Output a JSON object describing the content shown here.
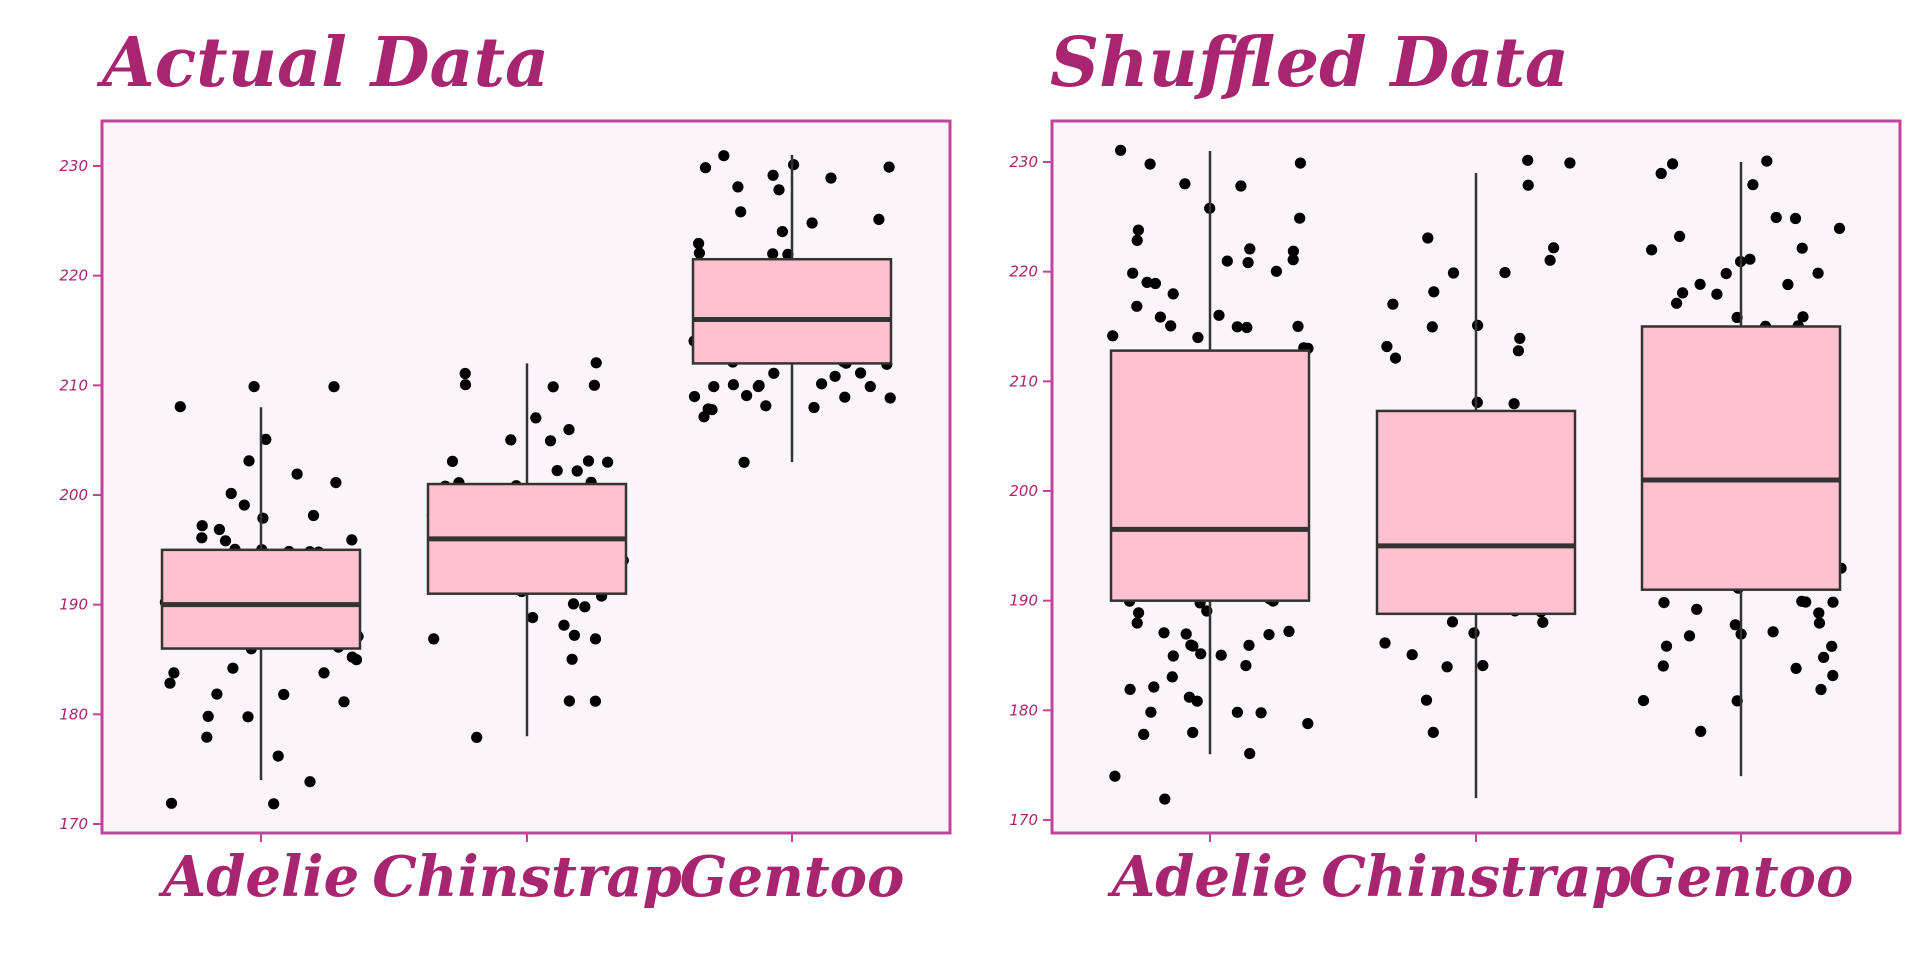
{
  "colors": {
    "accent": "#c2449a",
    "title": "#a8256f",
    "panel_bg": "#fbf4f9",
    "box_fill": "#ffc0cf",
    "box_stroke": "#333333",
    "point": "#000000"
  },
  "chart_data": [
    {
      "type": "box",
      "title": "Actual Data",
      "categories": [
        "Adelie",
        "Chinstrap",
        "Gentoo"
      ],
      "ylim": [
        169.5,
        231.5
      ],
      "yticks": [
        170,
        180,
        190,
        200,
        210,
        220,
        230
      ],
      "boxes": [
        {
          "q1": 186,
          "median": 190,
          "q3": 195,
          "whisker_low": 174,
          "whisker_high": 208
        },
        {
          "q1": 191,
          "median": 196,
          "q3": 201,
          "whisker_low": 178,
          "whisker_high": 212
        },
        {
          "q1": 212,
          "median": 216,
          "q3": 221.5,
          "whisker_low": 203,
          "whisker_high": 231
        }
      ],
      "points": [
        [
          180,
          182,
          183,
          184,
          184,
          185,
          186,
          187,
          187,
          188,
          188,
          188,
          189,
          189,
          190,
          190,
          190,
          190,
          190,
          190,
          190,
          191,
          191,
          191,
          191,
          192,
          192,
          192,
          193,
          193,
          193,
          194,
          195,
          195,
          195,
          195,
          195,
          196,
          196,
          196,
          197,
          197,
          198,
          198,
          199,
          200,
          201,
          202,
          203,
          205,
          208,
          210,
          210,
          178,
          176,
          174,
          172,
          172,
          180,
          181,
          182,
          184,
          185,
          186,
          187,
          187,
          188,
          189,
          190,
          191
        ],
        [
          178,
          181,
          181,
          185,
          187,
          187,
          187,
          188,
          189,
          190,
          190,
          191,
          191,
          192,
          192,
          193,
          194,
          195,
          195,
          196,
          197,
          197,
          198,
          199,
          200,
          201,
          201,
          201,
          201,
          202,
          202,
          203,
          203,
          203,
          205,
          205,
          206,
          207,
          210,
          210,
          210,
          211,
          212
        ],
        [
          203,
          207,
          208,
          208,
          208,
          208,
          209,
          209,
          209,
          209,
          210,
          210,
          210,
          210,
          210,
          210,
          211,
          211,
          211,
          212,
          212,
          212,
          212,
          213,
          213,
          213,
          214,
          214,
          214,
          215,
          215,
          215,
          216,
          216,
          216,
          217,
          217,
          217,
          218,
          218,
          219,
          219,
          220,
          220,
          221,
          221,
          222,
          222,
          222,
          223,
          224,
          225,
          225,
          226,
          228,
          228,
          229,
          229,
          230,
          230,
          230,
          231
        ]
      ]
    },
    {
      "type": "box",
      "title": "Shuffled Data",
      "categories": [
        "Adelie",
        "Chinstrap",
        "Gentoo"
      ],
      "ylim": [
        169.5,
        231.5
      ],
      "yticks": [
        170,
        180,
        190,
        200,
        210,
        220,
        230
      ],
      "boxes": [
        {
          "q1": 190,
          "median": 196.5,
          "q3": 212.8,
          "whisker_low": 176,
          "whisker_high": 231
        },
        {
          "q1": 188.8,
          "median": 195,
          "q3": 207.3,
          "whisker_low": 172,
          "whisker_high": 229
        },
        {
          "q1": 191,
          "median": 201,
          "q3": 215,
          "whisker_low": 174,
          "whisker_high": 230
        }
      ],
      "points": [
        [
          172,
          174,
          176,
          178,
          178,
          179,
          180,
          180,
          180,
          181,
          181,
          182,
          182,
          183,
          184,
          185,
          185,
          185,
          186,
          186,
          186,
          187,
          187,
          187,
          187,
          188,
          189,
          189,
          190,
          190,
          190,
          190,
          191,
          192,
          193,
          194,
          195,
          196,
          197,
          200,
          205,
          208,
          209,
          210,
          212,
          213,
          213,
          214,
          214,
          215,
          215,
          215,
          215,
          216,
          216,
          217,
          218,
          219,
          219,
          220,
          220,
          221,
          221,
          221,
          222,
          222,
          223,
          224,
          225,
          226,
          228,
          228,
          230,
          230,
          231
        ],
        [
          178,
          181,
          184,
          184,
          185,
          186,
          187,
          188,
          188,
          189,
          189,
          190,
          190,
          191,
          192,
          193,
          194,
          195,
          196,
          197,
          198,
          200,
          205,
          208,
          208,
          212,
          213,
          213,
          214,
          215,
          215,
          217,
          218,
          220,
          220,
          221,
          222,
          223,
          228,
          230,
          230
        ],
        [
          178,
          181,
          181,
          182,
          183,
          184,
          184,
          185,
          186,
          186,
          187,
          187,
          187,
          188,
          188,
          189,
          189,
          190,
          190,
          190,
          190,
          191,
          192,
          193,
          195,
          197,
          198,
          199,
          200,
          203,
          206,
          209,
          210,
          214,
          215,
          215,
          216,
          216,
          217,
          218,
          218,
          219,
          219,
          220,
          220,
          221,
          221,
          222,
          222,
          223,
          224,
          225,
          225,
          228,
          229,
          230,
          230
        ]
      ]
    }
  ]
}
